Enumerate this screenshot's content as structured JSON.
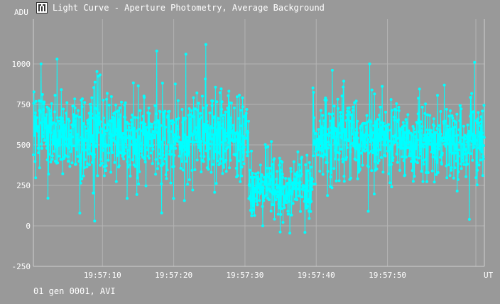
{
  "window": {
    "title": "Light Curve - Aperture Photometry, Average Background",
    "icon": "light-curve-app-icon",
    "footer": "01 gen 0001, AVI"
  },
  "chart_data": {
    "type": "line",
    "title": "Light Curve - Aperture Photometry, Average Background",
    "xlabel": "UT",
    "ylabel": "ADU",
    "x_unit": "seconds after 19:57:00 UT",
    "x_ticks": [
      {
        "t": 10,
        "label": "19:57:10"
      },
      {
        "t": 20,
        "label": "19:57:20"
      },
      {
        "t": 30,
        "label": "19:57:30"
      },
      {
        "t": 40,
        "label": "19:57:40"
      },
      {
        "t": 50,
        "label": "19:57:50"
      }
    ],
    "y_ticks": [
      -250,
      0,
      250,
      500,
      750,
      1000
    ],
    "xlim": [
      0.3,
      63.6
    ],
    "ylim": [
      -250,
      1200
    ],
    "grid": true,
    "marker": "circle",
    "line_color": "#00ffff",
    "segments": [
      {
        "t_start": 0.3,
        "t_end": 30.5,
        "baseline": 550,
        "spread": 130
      },
      {
        "t_start": 30.5,
        "t_end": 39.5,
        "baseline": 235,
        "spread": 90
      },
      {
        "t_start": 39.5,
        "t_end": 63.6,
        "baseline": 540,
        "spread": 130
      }
    ],
    "notable_points": [
      {
        "t": 1.4,
        "value": 1000
      },
      {
        "t": 3.6,
        "value": 1030
      },
      {
        "t": 8.9,
        "value": 30
      },
      {
        "t": 17.6,
        "value": 1080
      },
      {
        "t": 18.3,
        "value": 80
      },
      {
        "t": 21.7,
        "value": 1060
      },
      {
        "t": 24.5,
        "value": 1120
      },
      {
        "t": 32.5,
        "value": 0
      },
      {
        "t": 36.3,
        "value": -45
      },
      {
        "t": 38.4,
        "value": -40
      },
      {
        "t": 41.3,
        "value": 790
      },
      {
        "t": 47.5,
        "value": 1000
      },
      {
        "t": 47.3,
        "value": 90
      },
      {
        "t": 61.5,
        "value": 40
      },
      {
        "t": 62.2,
        "value": 1010
      }
    ]
  }
}
